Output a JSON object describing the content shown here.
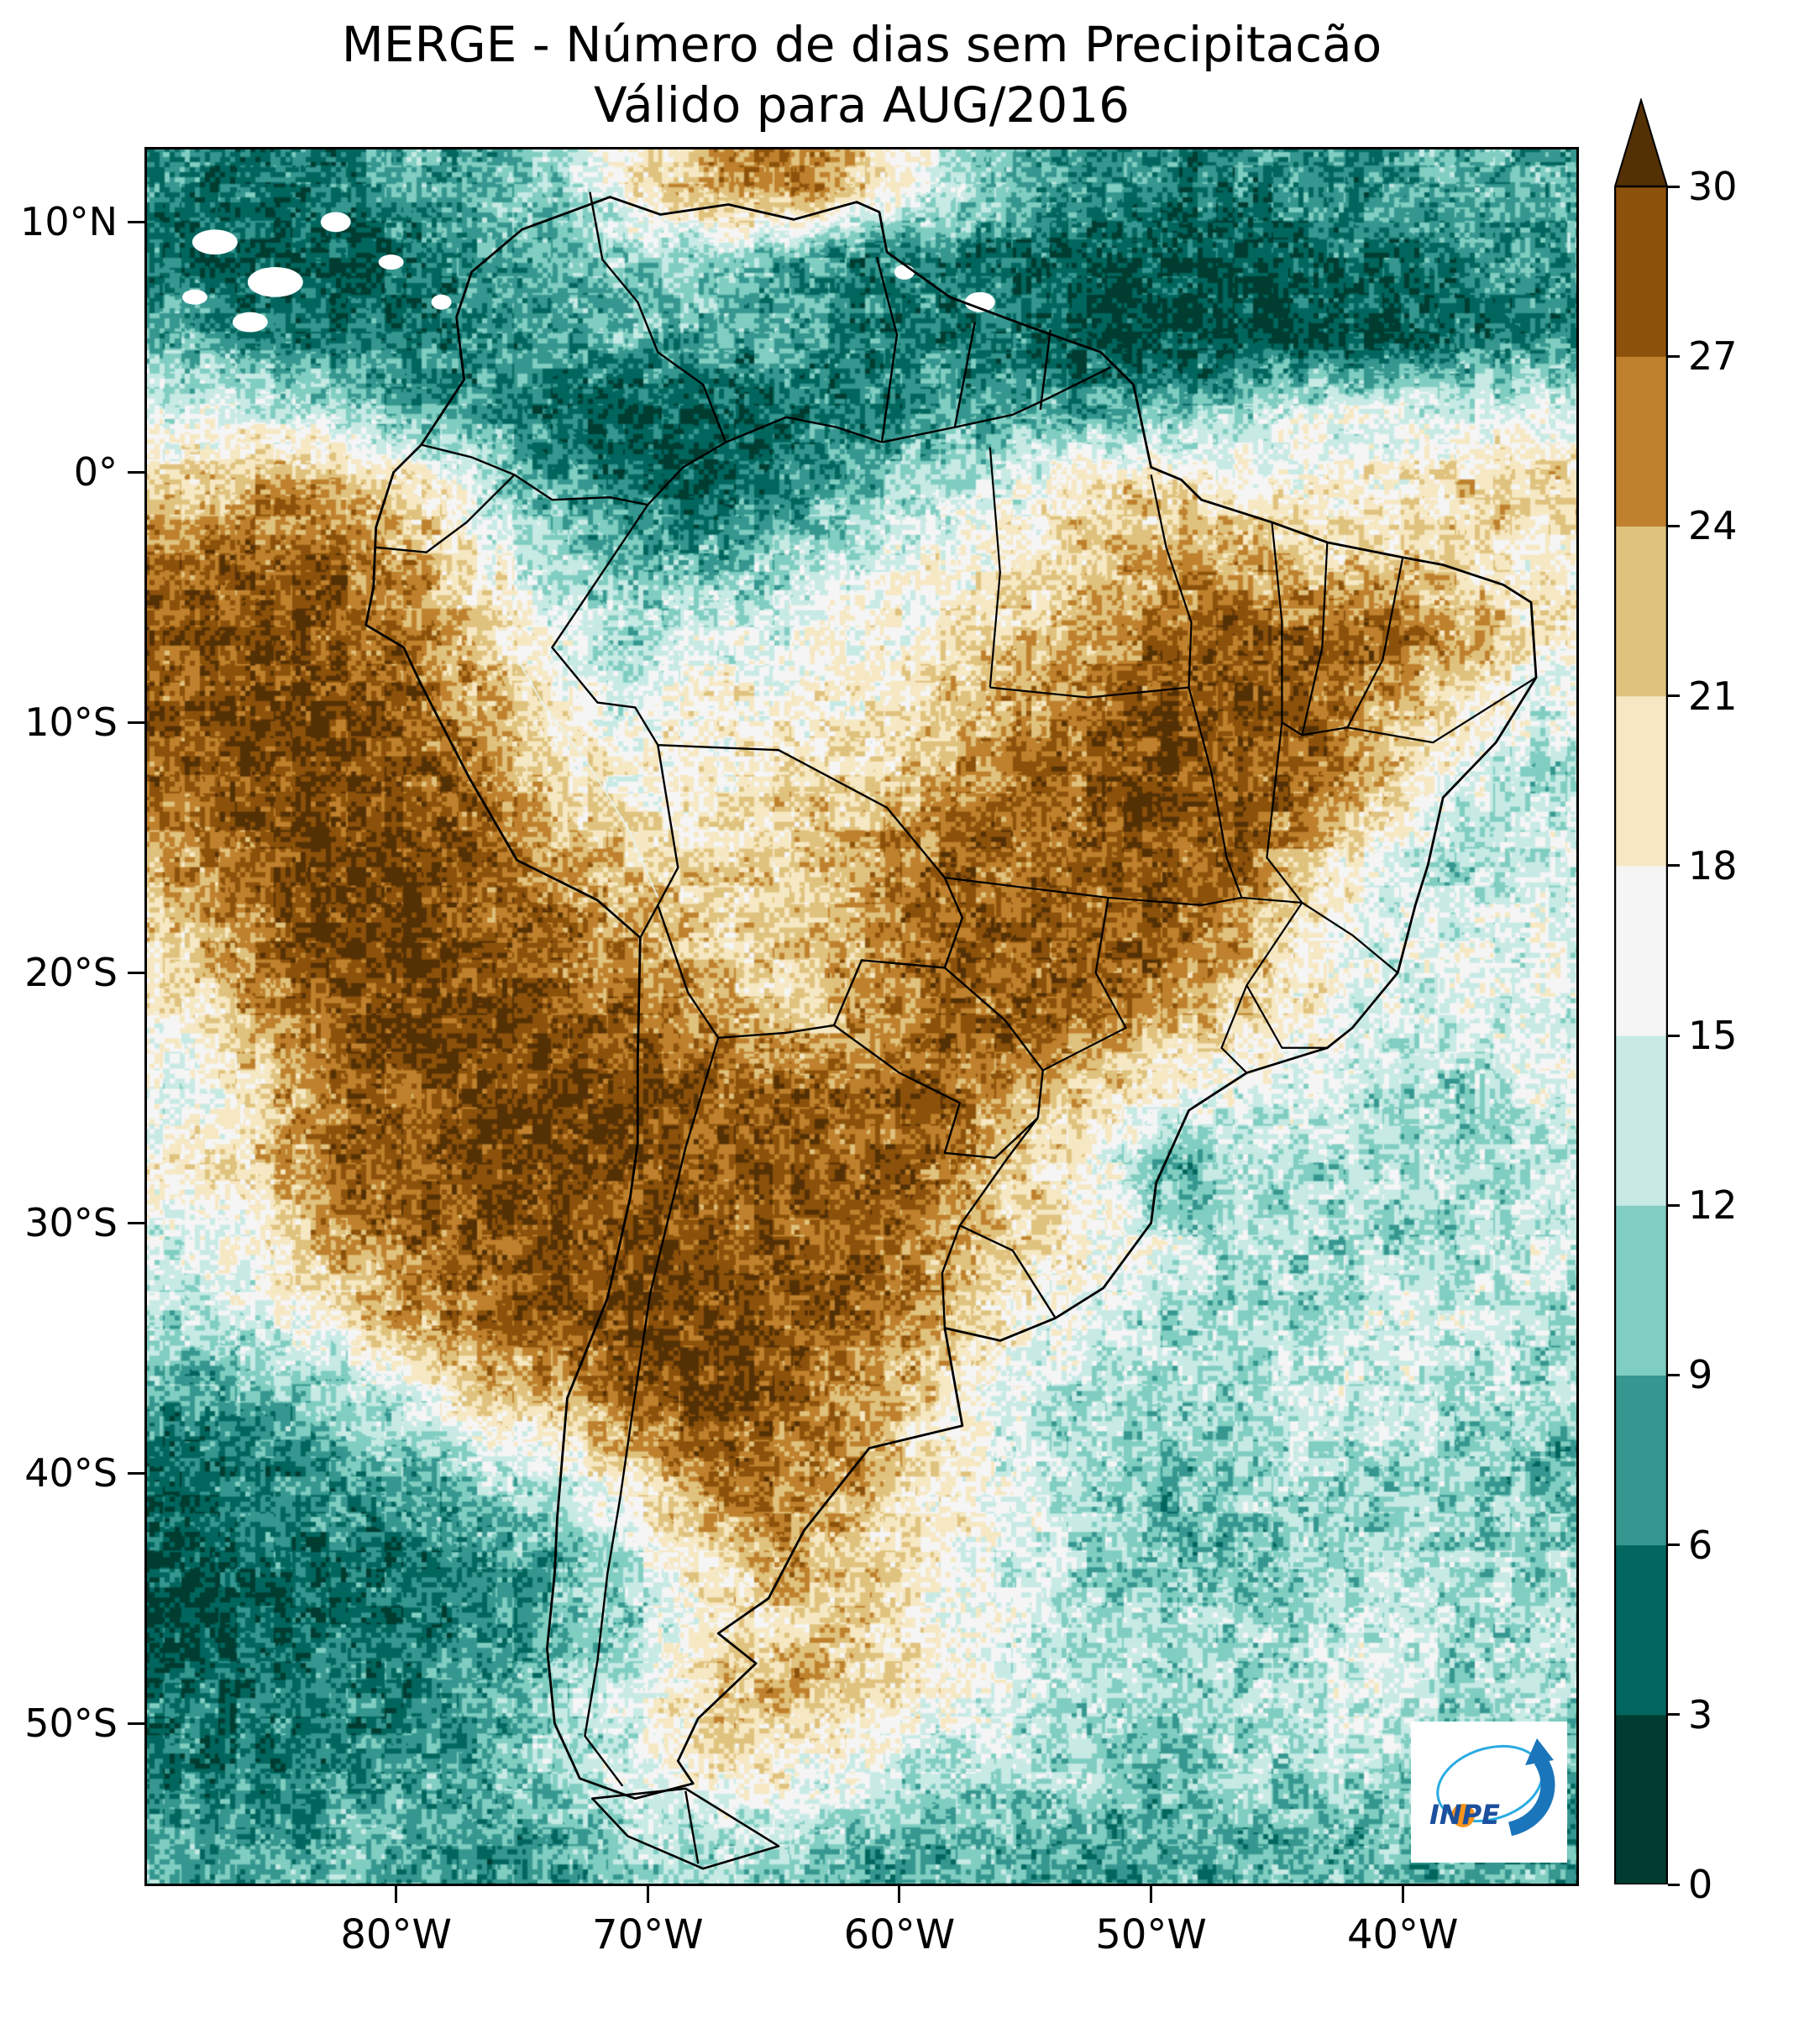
{
  "title": {
    "line1": "MERGE - Número de dias sem Precipitacão",
    "line2": "Válido para AUG/2016"
  },
  "logo": {
    "text": "INPE"
  },
  "chart_data": {
    "type": "heatmap",
    "title": "MERGE - Número de dias sem Precipitacão",
    "subtitle": "Válido para AUG/2016",
    "variable": "Número de dias sem precipitação",
    "units": "dias",
    "lon_range": [
      -90,
      -33
    ],
    "lat_range": [
      13,
      -56.5
    ],
    "x_ticks": [
      {
        "label": "80°W",
        "lon": -80
      },
      {
        "label": "70°W",
        "lon": -70
      },
      {
        "label": "60°W",
        "lon": -60
      },
      {
        "label": "50°W",
        "lon": -50
      },
      {
        "label": "40°W",
        "lon": -40
      }
    ],
    "y_ticks": [
      {
        "label": "10°N",
        "lat": 10
      },
      {
        "label": "0°",
        "lat": 0
      },
      {
        "label": "10°S",
        "lat": -10
      },
      {
        "label": "20°S",
        "lat": -20
      },
      {
        "label": "30°S",
        "lat": -30
      },
      {
        "label": "40°S",
        "lat": -40
      },
      {
        "label": "50°S",
        "lat": -50
      }
    ],
    "colorbar": {
      "ticks": [
        0,
        3,
        6,
        9,
        12,
        15,
        18,
        21,
        24,
        27,
        30
      ],
      "bin_size": 3,
      "colors_low_to_high": [
        "#003c30",
        "#01665e",
        "#35978f",
        "#80cdc1",
        "#c7eae5",
        "#f5f5f5",
        "#f6e8c3",
        "#dfc27d",
        "#bf812d",
        "#8c510a"
      ],
      "over_color": "#543005"
    },
    "grid": {
      "note": "approximate dry-day counts on 3-degree cells, rows north(13N) to south(56.5S), cols west(90W) to east(33W)",
      "rows": 23,
      "cols": 19,
      "values": [
        [
          6,
          5,
          6,
          8,
          9,
          12,
          18,
          24,
          27,
          21,
          15,
          9,
          8,
          6,
          6,
          6,
          8,
          9,
          9
        ],
        [
          5,
          3,
          3,
          5,
          8,
          9,
          12,
          12,
          9,
          6,
          6,
          5,
          3,
          3,
          3,
          5,
          5,
          6,
          8
        ],
        [
          9,
          6,
          5,
          5,
          6,
          8,
          9,
          9,
          8,
          6,
          5,
          5,
          3,
          2,
          2,
          3,
          3,
          5,
          6
        ],
        [
          15,
          15,
          12,
          9,
          8,
          5,
          3,
          3,
          5,
          6,
          8,
          8,
          8,
          9,
          12,
          15,
          15,
          15,
          15
        ],
        [
          21,
          24,
          24,
          21,
          12,
          8,
          5,
          5,
          6,
          9,
          12,
          15,
          21,
          21,
          18,
          18,
          18,
          21,
          21
        ],
        [
          27,
          28,
          27,
          24,
          18,
          12,
          9,
          9,
          12,
          15,
          18,
          18,
          21,
          24,
          24,
          21,
          21,
          21,
          18
        ],
        [
          28,
          30,
          28,
          27,
          21,
          15,
          12,
          15,
          15,
          18,
          18,
          21,
          24,
          27,
          28,
          28,
          27,
          24,
          18
        ],
        [
          28,
          30,
          30,
          28,
          24,
          18,
          15,
          18,
          18,
          18,
          21,
          24,
          27,
          30,
          30,
          28,
          24,
          18,
          15
        ],
        [
          27,
          30,
          30,
          28,
          27,
          21,
          18,
          18,
          21,
          21,
          24,
          27,
          28,
          30,
          28,
          27,
          21,
          15,
          12
        ],
        [
          24,
          28,
          30,
          30,
          28,
          24,
          21,
          21,
          21,
          24,
          27,
          27,
          28,
          28,
          27,
          21,
          15,
          12,
          15
        ],
        [
          21,
          27,
          30,
          30,
          28,
          27,
          24,
          21,
          21,
          24,
          27,
          28,
          28,
          28,
          24,
          18,
          15,
          15,
          15
        ],
        [
          18,
          24,
          28,
          30,
          30,
          28,
          27,
          24,
          21,
          24,
          27,
          28,
          27,
          24,
          21,
          18,
          15,
          15,
          15
        ],
        [
          15,
          21,
          27,
          28,
          30,
          30,
          30,
          28,
          28,
          28,
          28,
          24,
          21,
          18,
          15,
          15,
          12,
          12,
          15
        ],
        [
          18,
          21,
          27,
          28,
          30,
          30,
          28,
          28,
          28,
          28,
          27,
          21,
          18,
          8,
          12,
          12,
          12,
          12,
          12
        ],
        [
          15,
          18,
          24,
          27,
          28,
          30,
          30,
          28,
          28,
          28,
          24,
          21,
          18,
          15,
          12,
          12,
          12,
          12,
          15
        ],
        [
          12,
          15,
          18,
          24,
          27,
          28,
          30,
          30,
          28,
          27,
          24,
          18,
          15,
          12,
          12,
          12,
          15,
          15,
          12
        ],
        [
          8,
          9,
          12,
          15,
          21,
          24,
          28,
          30,
          28,
          24,
          21,
          15,
          12,
          12,
          12,
          15,
          15,
          12,
          12
        ],
        [
          5,
          6,
          8,
          9,
          12,
          15,
          21,
          27,
          27,
          24,
          18,
          15,
          12,
          9,
          12,
          12,
          12,
          12,
          9
        ],
        [
          3,
          5,
          5,
          6,
          8,
          9,
          15,
          21,
          24,
          21,
          18,
          15,
          12,
          9,
          9,
          12,
          12,
          12,
          12
        ],
        [
          3,
          3,
          5,
          5,
          6,
          9,
          12,
          18,
          21,
          21,
          18,
          15,
          12,
          12,
          12,
          12,
          15,
          12,
          12
        ],
        [
          5,
          5,
          6,
          6,
          8,
          12,
          15,
          21,
          24,
          21,
          18,
          15,
          12,
          12,
          12,
          15,
          15,
          12,
          12
        ],
        [
          6,
          6,
          6,
          8,
          9,
          12,
          15,
          18,
          18,
          15,
          12,
          12,
          12,
          9,
          12,
          12,
          12,
          9,
          9
        ],
        [
          8,
          8,
          9,
          9,
          6,
          8,
          12,
          12,
          12,
          9,
          9,
          9,
          8,
          8,
          9,
          9,
          9,
          8,
          8
        ]
      ]
    }
  }
}
